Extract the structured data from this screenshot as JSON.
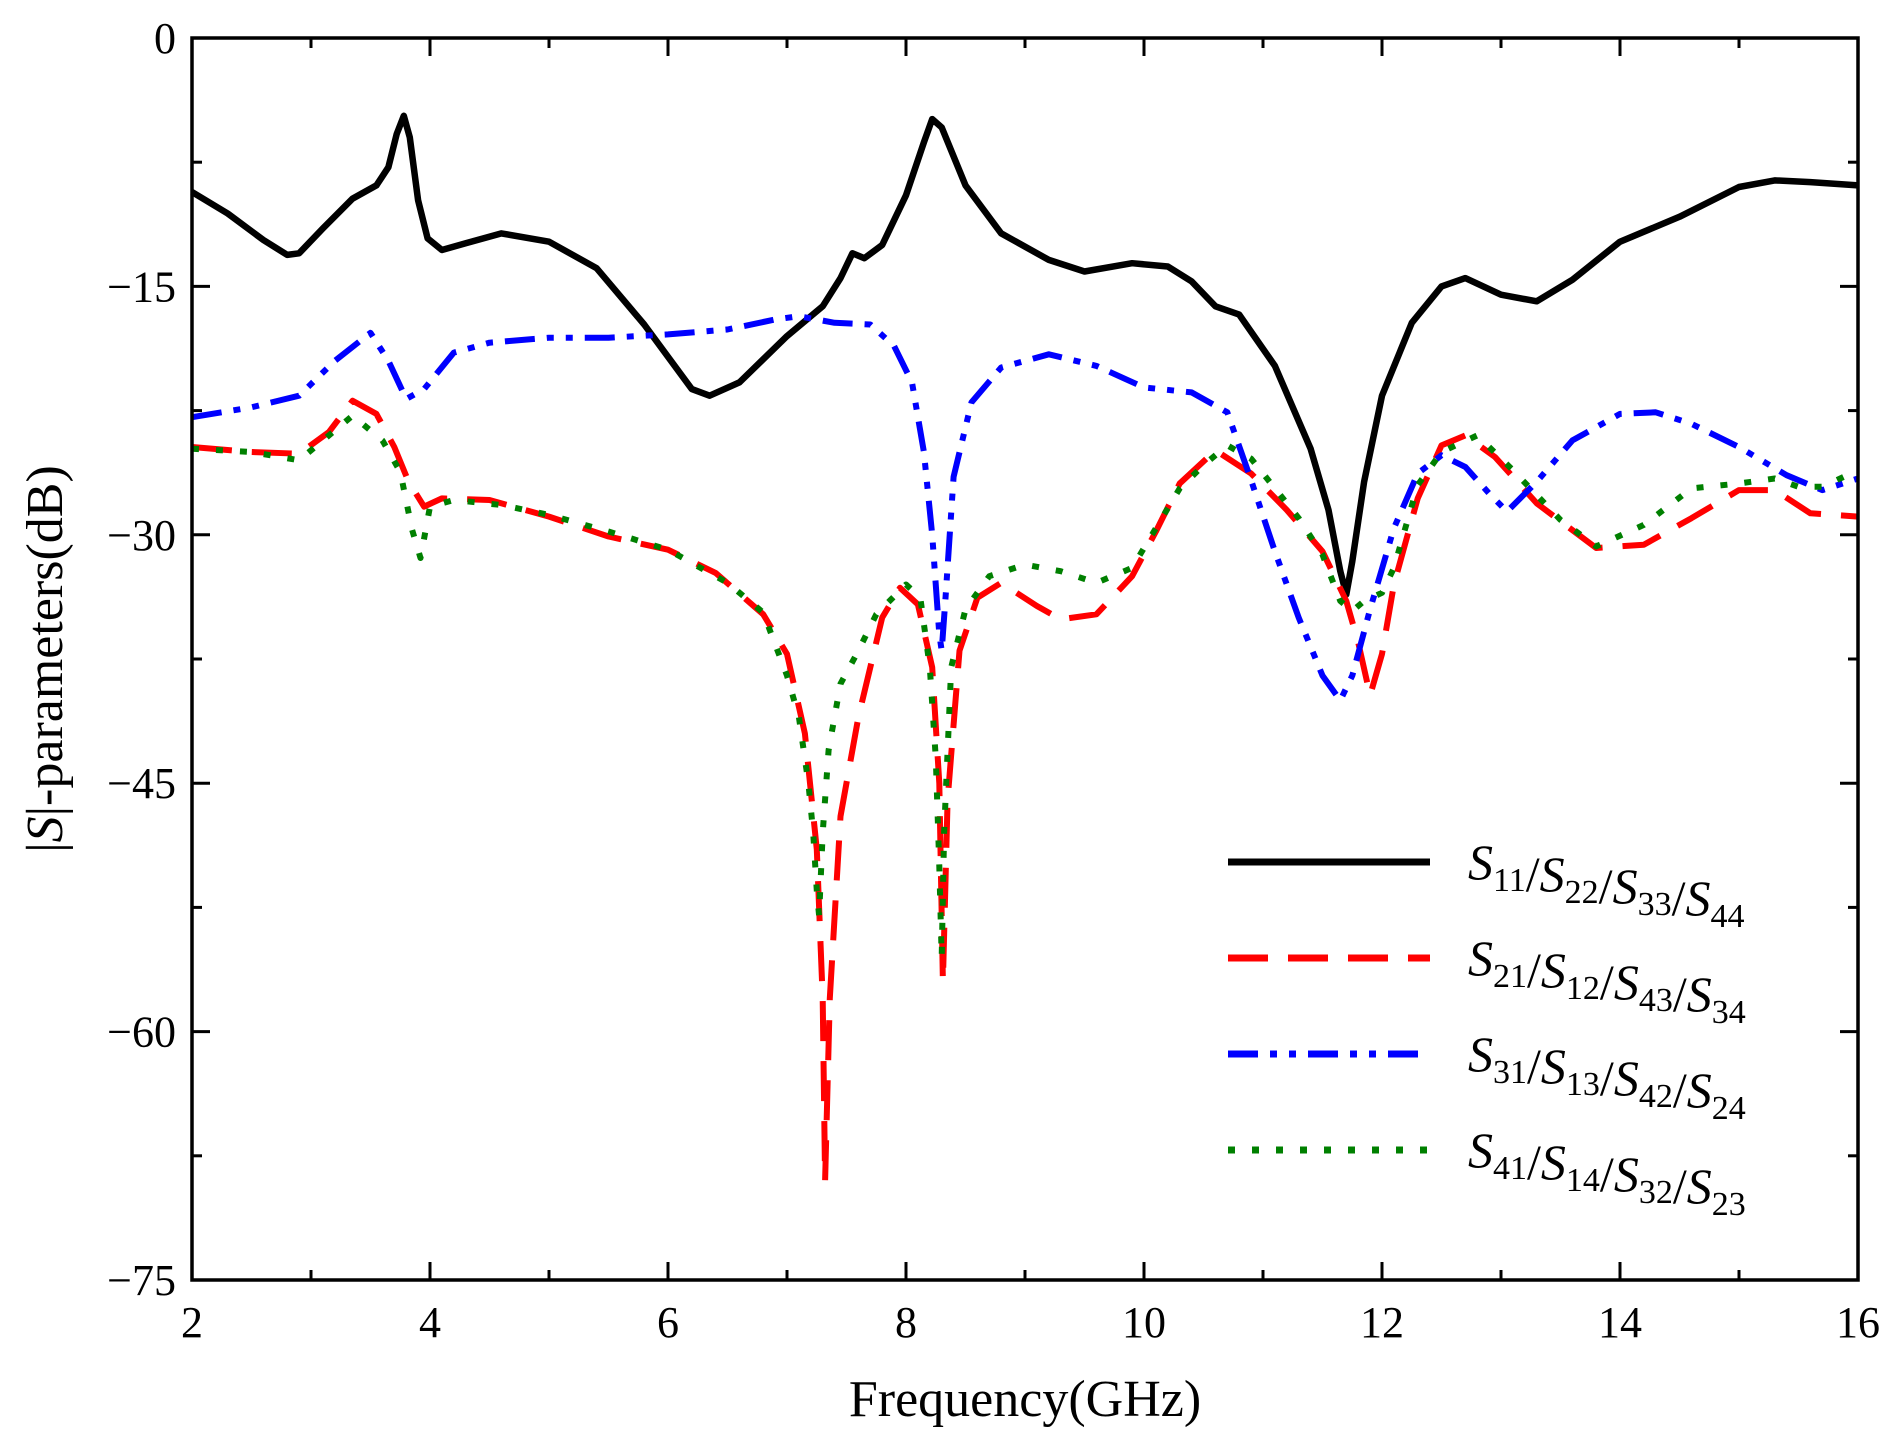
{
  "chart_data": {
    "type": "line",
    "title": "",
    "xlabel": "Frequency(GHz)",
    "ylabel_parts": [
      "|",
      "S",
      "|-parameters(dB)"
    ],
    "xlim": [
      2,
      16
    ],
    "ylim": [
      -75,
      0
    ],
    "x_ticks": [
      2,
      4,
      6,
      8,
      10,
      12,
      14,
      16
    ],
    "x_tick_labels": [
      "2",
      "4",
      "6",
      "8",
      "10",
      "12",
      "14",
      "16"
    ],
    "y_ticks": [
      0,
      -15,
      -30,
      -45,
      -60,
      -75
    ],
    "y_tick_labels": [
      "0",
      "−15",
      "−30",
      "−45",
      "−60",
      "−75"
    ],
    "legend_position": "bottom-right",
    "series": [
      {
        "name": "S11/S22/S33/S44",
        "color": "#000000",
        "style": "solid",
        "legend_terms": [
          {
            "base": "S",
            "sub": "11"
          },
          {
            "base": "S",
            "sub": "22"
          },
          {
            "base": "S",
            "sub": "33"
          },
          {
            "base": "S",
            "sub": "44"
          }
        ],
        "points": [
          [
            2,
            -9.3
          ],
          [
            2.3,
            -10.6
          ],
          [
            2.6,
            -12.2
          ],
          [
            2.8,
            -13.1
          ],
          [
            2.9,
            -13.0
          ],
          [
            3.1,
            -11.5
          ],
          [
            3.35,
            -9.7
          ],
          [
            3.55,
            -8.9
          ],
          [
            3.65,
            -7.8
          ],
          [
            3.72,
            -5.8
          ],
          [
            3.78,
            -4.7
          ],
          [
            3.83,
            -6.0
          ],
          [
            3.9,
            -9.8
          ],
          [
            3.98,
            -12.1
          ],
          [
            4.1,
            -12.8
          ],
          [
            4.3,
            -12.4
          ],
          [
            4.6,
            -11.8
          ],
          [
            5.0,
            -12.3
          ],
          [
            5.4,
            -13.9
          ],
          [
            5.8,
            -17.3
          ],
          [
            6.2,
            -21.2
          ],
          [
            6.35,
            -21.6
          ],
          [
            6.6,
            -20.8
          ],
          [
            7.0,
            -18.0
          ],
          [
            7.3,
            -16.2
          ],
          [
            7.45,
            -14.5
          ],
          [
            7.55,
            -13.0
          ],
          [
            7.65,
            -13.3
          ],
          [
            7.8,
            -12.5
          ],
          [
            8.0,
            -9.5
          ],
          [
            8.15,
            -6.3
          ],
          [
            8.22,
            -4.9
          ],
          [
            8.3,
            -5.4
          ],
          [
            8.5,
            -8.9
          ],
          [
            8.8,
            -11.8
          ],
          [
            9.2,
            -13.4
          ],
          [
            9.5,
            -14.1
          ],
          [
            9.9,
            -13.6
          ],
          [
            10.2,
            -13.8
          ],
          [
            10.4,
            -14.7
          ],
          [
            10.6,
            -16.2
          ],
          [
            10.8,
            -16.7
          ],
          [
            11.1,
            -19.8
          ],
          [
            11.4,
            -24.8
          ],
          [
            11.55,
            -28.5
          ],
          [
            11.65,
            -32.2
          ],
          [
            11.7,
            -33.6
          ],
          [
            11.75,
            -31.6
          ],
          [
            11.85,
            -26.8
          ],
          [
            12.0,
            -21.6
          ],
          [
            12.25,
            -17.2
          ],
          [
            12.5,
            -15.0
          ],
          [
            12.7,
            -14.5
          ],
          [
            13.0,
            -15.5
          ],
          [
            13.3,
            -15.9
          ],
          [
            13.6,
            -14.6
          ],
          [
            14.0,
            -12.3
          ],
          [
            14.5,
            -10.8
          ],
          [
            15.0,
            -9.0
          ],
          [
            15.3,
            -8.6
          ],
          [
            15.6,
            -8.7
          ],
          [
            16.0,
            -8.9
          ]
        ]
      },
      {
        "name": "S21/S12/S43/S34",
        "color": "#ff0000",
        "style": "dashed",
        "legend_terms": [
          {
            "base": "S",
            "sub": "21"
          },
          {
            "base": "S",
            "sub": "12"
          },
          {
            "base": "S",
            "sub": "43"
          },
          {
            "base": "S",
            "sub": "34"
          }
        ],
        "points": [
          [
            2,
            -24.7
          ],
          [
            2.5,
            -25.0
          ],
          [
            2.9,
            -25.1
          ],
          [
            3.15,
            -23.8
          ],
          [
            3.35,
            -21.9
          ],
          [
            3.55,
            -22.7
          ],
          [
            3.7,
            -24.7
          ],
          [
            3.82,
            -26.8
          ],
          [
            3.95,
            -28.3
          ],
          [
            4.1,
            -27.8
          ],
          [
            4.5,
            -27.9
          ],
          [
            5.0,
            -28.9
          ],
          [
            5.5,
            -30.1
          ],
          [
            6.0,
            -30.9
          ],
          [
            6.4,
            -32.3
          ],
          [
            6.8,
            -34.8
          ],
          [
            7.0,
            -37.2
          ],
          [
            7.15,
            -42.0
          ],
          [
            7.25,
            -49.0
          ],
          [
            7.3,
            -58.0
          ],
          [
            7.32,
            -69.0
          ],
          [
            7.36,
            -58.0
          ],
          [
            7.45,
            -47.0
          ],
          [
            7.6,
            -41.0
          ],
          [
            7.8,
            -35.0
          ],
          [
            7.95,
            -33.2
          ],
          [
            8.1,
            -34.2
          ],
          [
            8.22,
            -38.0
          ],
          [
            8.28,
            -45.0
          ],
          [
            8.31,
            -57.0
          ],
          [
            8.35,
            -46.0
          ],
          [
            8.45,
            -37.0
          ],
          [
            8.6,
            -33.8
          ],
          [
            8.8,
            -32.9
          ],
          [
            9.1,
            -34.3
          ],
          [
            9.3,
            -35.1
          ],
          [
            9.6,
            -34.8
          ],
          [
            9.9,
            -32.5
          ],
          [
            10.1,
            -29.8
          ],
          [
            10.3,
            -26.9
          ],
          [
            10.6,
            -24.9
          ],
          [
            10.9,
            -26.3
          ],
          [
            11.2,
            -28.5
          ],
          [
            11.5,
            -31.0
          ],
          [
            11.7,
            -34.0
          ],
          [
            11.8,
            -36.5
          ],
          [
            11.9,
            -39.7
          ],
          [
            12.0,
            -37.2
          ],
          [
            12.1,
            -33.0
          ],
          [
            12.3,
            -27.8
          ],
          [
            12.5,
            -24.6
          ],
          [
            12.7,
            -24.0
          ],
          [
            12.95,
            -25.3
          ],
          [
            13.3,
            -28.1
          ],
          [
            13.8,
            -30.8
          ],
          [
            14.2,
            -30.6
          ],
          [
            14.6,
            -29.0
          ],
          [
            15.0,
            -27.3
          ],
          [
            15.3,
            -27.3
          ],
          [
            15.6,
            -28.7
          ],
          [
            16.0,
            -28.9
          ]
        ]
      },
      {
        "name": "S31/S13/S42/S24",
        "color": "#0000ff",
        "style": "dashdotdot",
        "legend_terms": [
          {
            "base": "S",
            "sub": "31"
          },
          {
            "base": "S",
            "sub": "13"
          },
          {
            "base": "S",
            "sub": "42"
          },
          {
            "base": "S",
            "sub": "24"
          }
        ],
        "points": [
          [
            2,
            -22.9
          ],
          [
            2.5,
            -22.3
          ],
          [
            2.9,
            -21.6
          ],
          [
            3.2,
            -19.5
          ],
          [
            3.5,
            -17.8
          ],
          [
            3.65,
            -19.5
          ],
          [
            3.8,
            -21.8
          ],
          [
            3.95,
            -21.2
          ],
          [
            4.2,
            -19.0
          ],
          [
            4.5,
            -18.4
          ],
          [
            5.0,
            -18.1
          ],
          [
            5.5,
            -18.1
          ],
          [
            6.0,
            -17.9
          ],
          [
            6.5,
            -17.6
          ],
          [
            6.9,
            -17.0
          ],
          [
            7.1,
            -16.8
          ],
          [
            7.4,
            -17.2
          ],
          [
            7.7,
            -17.3
          ],
          [
            7.9,
            -18.6
          ],
          [
            8.05,
            -20.8
          ],
          [
            8.15,
            -25.0
          ],
          [
            8.22,
            -30.0
          ],
          [
            8.28,
            -36.0
          ],
          [
            8.3,
            -37.0
          ],
          [
            8.33,
            -34.0
          ],
          [
            8.4,
            -26.5
          ],
          [
            8.55,
            -22.0
          ],
          [
            8.8,
            -19.9
          ],
          [
            9.2,
            -19.1
          ],
          [
            9.6,
            -19.8
          ],
          [
            10.0,
            -21.1
          ],
          [
            10.4,
            -21.4
          ],
          [
            10.7,
            -22.6
          ],
          [
            10.9,
            -26.7
          ],
          [
            11.1,
            -31.0
          ],
          [
            11.3,
            -35.0
          ],
          [
            11.5,
            -38.5
          ],
          [
            11.65,
            -40.0
          ],
          [
            11.75,
            -38.5
          ],
          [
            11.9,
            -34.5
          ],
          [
            12.1,
            -29.6
          ],
          [
            12.3,
            -26.3
          ],
          [
            12.5,
            -25.2
          ],
          [
            12.7,
            -25.9
          ],
          [
            12.9,
            -27.5
          ],
          [
            13.05,
            -28.6
          ],
          [
            13.3,
            -26.8
          ],
          [
            13.6,
            -24.3
          ],
          [
            14.0,
            -22.7
          ],
          [
            14.3,
            -22.6
          ],
          [
            14.6,
            -23.3
          ],
          [
            15.0,
            -24.7
          ],
          [
            15.4,
            -26.4
          ],
          [
            15.7,
            -27.3
          ],
          [
            16.0,
            -26.6
          ]
        ]
      },
      {
        "name": "S41/S14/S32/S23",
        "color": "#008000",
        "style": "dotted",
        "legend_terms": [
          {
            "base": "S",
            "sub": "41"
          },
          {
            "base": "S",
            "sub": "14"
          },
          {
            "base": "S",
            "sub": "32"
          },
          {
            "base": "S",
            "sub": "23"
          }
        ],
        "points": [
          [
            2,
            -24.8
          ],
          [
            2.5,
            -25.0
          ],
          [
            2.9,
            -25.5
          ],
          [
            3.15,
            -24.0
          ],
          [
            3.35,
            -22.8
          ],
          [
            3.6,
            -24.3
          ],
          [
            3.75,
            -26.2
          ],
          [
            3.85,
            -29.7
          ],
          [
            3.92,
            -31.4
          ],
          [
            4.0,
            -28.3
          ],
          [
            4.2,
            -27.9
          ],
          [
            4.6,
            -28.2
          ],
          [
            5.0,
            -28.8
          ],
          [
            5.5,
            -29.8
          ],
          [
            6.0,
            -30.9
          ],
          [
            6.5,
            -32.9
          ],
          [
            6.8,
            -34.7
          ],
          [
            7.0,
            -38.5
          ],
          [
            7.1,
            -41.0
          ],
          [
            7.18,
            -45.0
          ],
          [
            7.22,
            -48.0
          ],
          [
            7.25,
            -51.5
          ],
          [
            7.27,
            -53.0
          ],
          [
            7.3,
            -48.0
          ],
          [
            7.35,
            -43.0
          ],
          [
            7.45,
            -39.0
          ],
          [
            7.6,
            -37.0
          ],
          [
            7.75,
            -34.8
          ],
          [
            8.0,
            -33.0
          ],
          [
            8.12,
            -33.8
          ],
          [
            8.2,
            -38.0
          ],
          [
            8.25,
            -43.5
          ],
          [
            8.28,
            -50.0
          ],
          [
            8.3,
            -55.5
          ],
          [
            8.32,
            -48.0
          ],
          [
            8.38,
            -38.0
          ],
          [
            8.5,
            -34.5
          ],
          [
            8.7,
            -32.5
          ],
          [
            9.0,
            -31.8
          ],
          [
            9.3,
            -32.2
          ],
          [
            9.6,
            -32.9
          ],
          [
            9.9,
            -32.0
          ],
          [
            10.1,
            -29.6
          ],
          [
            10.3,
            -27.2
          ],
          [
            10.5,
            -25.8
          ],
          [
            10.7,
            -24.6
          ],
          [
            10.9,
            -25.4
          ],
          [
            11.1,
            -27.2
          ],
          [
            11.3,
            -29.0
          ],
          [
            11.5,
            -31.2
          ],
          [
            11.65,
            -34.0
          ],
          [
            11.75,
            -34.6
          ],
          [
            11.85,
            -34.0
          ],
          [
            12.0,
            -33.5
          ],
          [
            12.1,
            -32.0
          ],
          [
            12.3,
            -27.0
          ],
          [
            12.5,
            -25.0
          ],
          [
            12.8,
            -24.0
          ],
          [
            13.1,
            -26.1
          ],
          [
            13.5,
            -29.1
          ],
          [
            13.8,
            -30.7
          ],
          [
            14.2,
            -29.4
          ],
          [
            14.6,
            -27.2
          ],
          [
            15.0,
            -26.9
          ],
          [
            15.3,
            -26.6
          ],
          [
            15.5,
            -27.1
          ],
          [
            15.7,
            -27.1
          ],
          [
            16.0,
            -26.1
          ]
        ]
      }
    ]
  }
}
